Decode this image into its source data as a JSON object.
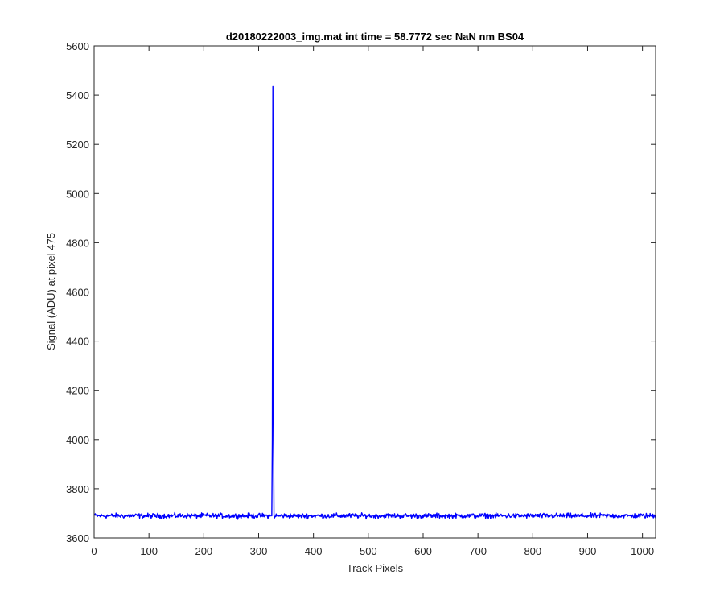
{
  "chart_data": {
    "type": "line",
    "title": "d20180222003_img.mat int time = 58.7772 sec  NaN nm BS04",
    "xlabel": "Track Pixels",
    "ylabel": "Signal (ADU) at pixel 475",
    "xlim": [
      0,
      1024
    ],
    "ylim": [
      3600,
      5600
    ],
    "xticks": [
      0,
      100,
      200,
      300,
      400,
      500,
      600,
      700,
      800,
      900,
      1000
    ],
    "yticks": [
      3600,
      3800,
      4000,
      4200,
      4400,
      4600,
      4800,
      5000,
      5200,
      5400,
      5600
    ],
    "grid": false,
    "series": [
      {
        "color": "#0000ff",
        "baseline": 3690,
        "noise_amplitude": 15,
        "x_range": [
          1,
          1024
        ],
        "spike": {
          "x": [
            324,
            325,
            326,
            327,
            328
          ],
          "y": [
            3690,
            4000,
            5435,
            4100,
            3690
          ]
        }
      }
    ]
  },
  "colors": {
    "line": "#0000ff",
    "axes": "#262626",
    "background": "#ffffff"
  }
}
